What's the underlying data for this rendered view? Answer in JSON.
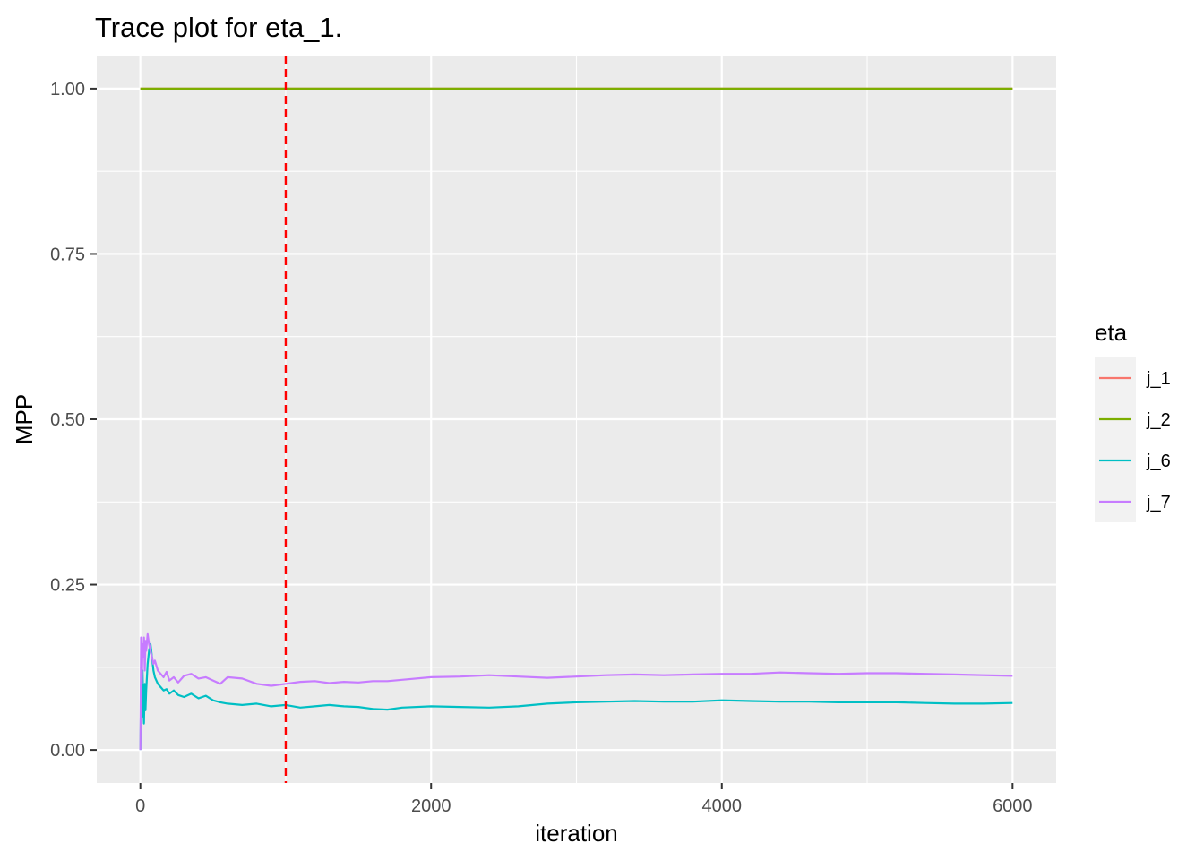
{
  "chart_data": {
    "type": "line",
    "title": "Trace plot for eta_1.",
    "xlabel": "iteration",
    "ylabel": "MPP",
    "xlim": [
      -300,
      6300
    ],
    "ylim": [
      -0.05,
      1.05
    ],
    "x_ticks": [
      0,
      2000,
      4000,
      6000
    ],
    "x_tick_labels": [
      "0",
      "2000",
      "4000",
      "6000"
    ],
    "x_minor_ticks": [
      1000,
      3000,
      5000
    ],
    "y_ticks": [
      0,
      0.25,
      0.5,
      0.75,
      1
    ],
    "y_tick_labels": [
      "0.00",
      "0.25",
      "0.50",
      "0.75",
      "1.00"
    ],
    "y_minor_ticks": [
      0.125,
      0.375,
      0.625,
      0.875
    ],
    "grid": true,
    "legend": {
      "title": "eta",
      "position": "right",
      "entries": [
        "j_1",
        "j_2",
        "j_6",
        "j_7"
      ]
    },
    "vline": {
      "x": 1000,
      "color": "#FF0000",
      "style": "dashed"
    },
    "series": [
      {
        "name": "j_1",
        "color": "#F8766D",
        "x": [
          0,
          6000
        ],
        "y": [
          1.0,
          1.0
        ]
      },
      {
        "name": "j_2",
        "color": "#7CAE00",
        "x": [
          0,
          6000
        ],
        "y": [
          1.0,
          1.0
        ]
      },
      {
        "name": "j_6",
        "color": "#00BFC4",
        "x": [
          0,
          5,
          10,
          15,
          20,
          25,
          30,
          35,
          40,
          50,
          60,
          70,
          80,
          90,
          100,
          120,
          140,
          160,
          180,
          200,
          230,
          260,
          300,
          350,
          400,
          450,
          500,
          550,
          600,
          700,
          800,
          900,
          1000,
          1100,
          1200,
          1300,
          1400,
          1500,
          1600,
          1700,
          1800,
          2000,
          2200,
          2400,
          2600,
          2800,
          3000,
          3200,
          3400,
          3600,
          3800,
          4000,
          4200,
          4400,
          4600,
          4800,
          5000,
          5200,
          5400,
          5600,
          5800,
          6000
        ],
        "y": [
          0.0,
          0.1,
          0.05,
          0.12,
          0.07,
          0.04,
          0.1,
          0.06,
          0.09,
          0.13,
          0.15,
          0.16,
          0.14,
          0.12,
          0.11,
          0.1,
          0.095,
          0.09,
          0.092,
          0.085,
          0.09,
          0.083,
          0.08,
          0.085,
          0.078,
          0.082,
          0.075,
          0.072,
          0.07,
          0.068,
          0.07,
          0.066,
          0.068,
          0.064,
          0.066,
          0.068,
          0.066,
          0.065,
          0.062,
          0.061,
          0.064,
          0.066,
          0.065,
          0.064,
          0.066,
          0.07,
          0.072,
          0.073,
          0.074,
          0.073,
          0.073,
          0.075,
          0.074,
          0.073,
          0.073,
          0.072,
          0.072,
          0.072,
          0.071,
          0.07,
          0.07,
          0.071
        ]
      },
      {
        "name": "j_7",
        "color": "#C77CFF",
        "x": [
          0,
          5,
          10,
          15,
          20,
          25,
          30,
          35,
          40,
          50,
          60,
          70,
          80,
          90,
          100,
          120,
          140,
          160,
          180,
          200,
          230,
          260,
          300,
          350,
          400,
          450,
          500,
          550,
          600,
          700,
          800,
          900,
          1000,
          1100,
          1200,
          1300,
          1400,
          1500,
          1600,
          1700,
          1800,
          2000,
          2200,
          2400,
          2600,
          2800,
          3000,
          3200,
          3400,
          3600,
          3800,
          4000,
          4200,
          4400,
          4600,
          4800,
          5000,
          5200,
          5400,
          5600,
          5800,
          6000
        ],
        "y": [
          0.0,
          0.17,
          0.1,
          0.16,
          0.14,
          0.17,
          0.12,
          0.165,
          0.15,
          0.175,
          0.16,
          0.15,
          0.14,
          0.13,
          0.135,
          0.12,
          0.115,
          0.11,
          0.118,
          0.105,
          0.11,
          0.102,
          0.112,
          0.115,
          0.108,
          0.11,
          0.105,
          0.1,
          0.11,
          0.108,
          0.1,
          0.097,
          0.1,
          0.103,
          0.104,
          0.101,
          0.103,
          0.102,
          0.104,
          0.104,
          0.106,
          0.11,
          0.111,
          0.113,
          0.111,
          0.109,
          0.111,
          0.113,
          0.114,
          0.113,
          0.114,
          0.115,
          0.115,
          0.117,
          0.116,
          0.115,
          0.116,
          0.116,
          0.115,
          0.114,
          0.113,
          0.112
        ]
      }
    ]
  }
}
